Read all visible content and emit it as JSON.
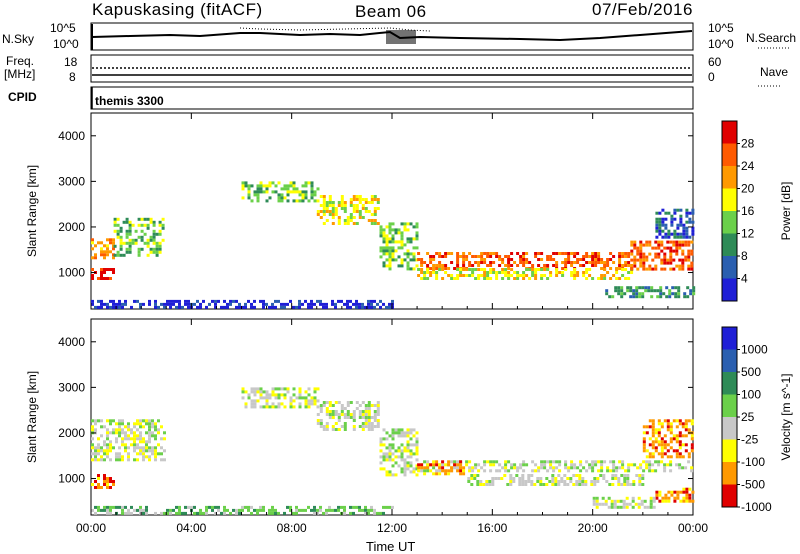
{
  "header": {
    "station": "Kapuskasing (fitACF)",
    "beam": "Beam 06",
    "date": "07/Feb/2016"
  },
  "noise_panel": {
    "left_label": "N.Sky",
    "right_label": "N.Search",
    "left_ticks": [
      "10^5",
      "10^0"
    ],
    "right_ticks": [
      "10^5",
      "10^0"
    ]
  },
  "freq_panel": {
    "left_label_1": "Freq.",
    "left_label_2": "[MHz]",
    "left_ticks": [
      "18",
      "8"
    ],
    "right_label": "Nave",
    "right_ticks": [
      "60",
      "0"
    ]
  },
  "cpid_panel": {
    "label": "CPID",
    "program": "themis 3300"
  },
  "colors": {
    "power_scale": [
      "#1f1fd6",
      "#2a5fb0",
      "#2e8b57",
      "#6bd04a",
      "#ffff00",
      "#ff9900",
      "#ff5a00",
      "#e00000"
    ],
    "velocity_scale": [
      "#1f1fd6",
      "#2a5fb0",
      "#2e8b57",
      "#6bd04a",
      "#c8c8c8",
      "#ffff00",
      "#ff9900",
      "#e00000"
    ],
    "ground_scatter": "#c8c8c8"
  },
  "chart_data": [
    {
      "type": "heatmap",
      "panel": "power",
      "xlabel": "",
      "ylabel": "Slant Range [km]",
      "x_ticks": [
        "00:00",
        "04:00",
        "08:00",
        "12:00",
        "16:00",
        "20:00",
        "00:00"
      ],
      "y_ticks": [
        "1000",
        "2000",
        "3000",
        "4000"
      ],
      "ylim": [
        200,
        4500
      ],
      "xlim_hours": [
        0,
        24
      ],
      "colorbar_label": "Power [dB]",
      "colorbar_ticks": [
        "4",
        "8",
        "12",
        "16",
        "20",
        "24",
        "28"
      ],
      "bands": [
        {
          "t0": 0.0,
          "t1": 0.9,
          "r0": 1350,
          "r1": 1750,
          "level": 5
        },
        {
          "t0": 0.0,
          "t1": 0.9,
          "r0": 850,
          "r1": 1100,
          "level": 7
        },
        {
          "t0": 0.9,
          "t1": 2.9,
          "r0": 1400,
          "r1": 2200,
          "level": 3
        },
        {
          "t0": 6.0,
          "t1": 9.0,
          "r0": 2600,
          "r1": 3000,
          "level": 3
        },
        {
          "t0": 9.0,
          "t1": 11.5,
          "r0": 2100,
          "r1": 2700,
          "level": 4
        },
        {
          "t0": 11.5,
          "t1": 13.0,
          "r0": 1100,
          "r1": 2100,
          "level": 3
        },
        {
          "t0": 13.0,
          "t1": 21.5,
          "r0": 1100,
          "r1": 1450,
          "level": 6
        },
        {
          "t0": 13.0,
          "t1": 21.5,
          "r0": 900,
          "r1": 1100,
          "level": 4
        },
        {
          "t0": 21.5,
          "t1": 24.0,
          "r0": 1100,
          "r1": 1700,
          "level": 6
        },
        {
          "t0": 22.5,
          "t1": 24.0,
          "r0": 1800,
          "r1": 2400,
          "level": 1
        },
        {
          "t0": 20.5,
          "t1": 24.0,
          "r0": 450,
          "r1": 700,
          "level": 2
        },
        {
          "t0": 0.0,
          "t1": 12.0,
          "r0": 250,
          "r1": 400,
          "level": 0
        }
      ]
    },
    {
      "type": "heatmap",
      "panel": "velocity",
      "xlabel": "Time UT",
      "ylabel": "Slant Range [km]",
      "x_ticks": [
        "00:00",
        "04:00",
        "08:00",
        "12:00",
        "16:00",
        "20:00",
        "00:00"
      ],
      "y_ticks": [
        "1000",
        "2000",
        "3000",
        "4000"
      ],
      "ylim": [
        200,
        4500
      ],
      "xlim_hours": [
        0,
        24
      ],
      "colorbar_label": "Velocity [m s^-1]",
      "colorbar_ticks": [
        "1000",
        "500",
        "100",
        "25",
        "-25",
        "-100",
        "-500",
        "-1000"
      ],
      "bands": [
        {
          "t0": 0.0,
          "t1": 2.9,
          "r0": 1400,
          "r1": 2300,
          "level": 4
        },
        {
          "t0": 0.0,
          "t1": 0.9,
          "r0": 800,
          "r1": 1100,
          "level": 6
        },
        {
          "t0": 6.0,
          "t1": 9.0,
          "r0": 2600,
          "r1": 3000,
          "level": 4
        },
        {
          "t0": 9.0,
          "t1": 11.5,
          "r0": 2100,
          "r1": 2700,
          "level": 4
        },
        {
          "t0": 11.5,
          "t1": 13.0,
          "r0": 1100,
          "r1": 2100,
          "level": 4
        },
        {
          "t0": 13.0,
          "t1": 24.0,
          "r0": 1150,
          "r1": 1400,
          "level": 4
        },
        {
          "t0": 13.0,
          "t1": 14.8,
          "r0": 1100,
          "r1": 1400,
          "level": 6
        },
        {
          "t0": 15.0,
          "t1": 22.0,
          "r0": 900,
          "r1": 1100,
          "level": 4
        },
        {
          "t0": 22.0,
          "t1": 24.0,
          "r0": 1500,
          "r1": 2300,
          "level": 6
        },
        {
          "t0": 22.5,
          "t1": 24.0,
          "r0": 500,
          "r1": 800,
          "level": 6
        },
        {
          "t0": 20.0,
          "t1": 22.5,
          "r0": 400,
          "r1": 600,
          "level": 4
        },
        {
          "t0": 0.0,
          "t1": 12.0,
          "r0": 250,
          "r1": 400,
          "level": 3
        }
      ]
    }
  ]
}
